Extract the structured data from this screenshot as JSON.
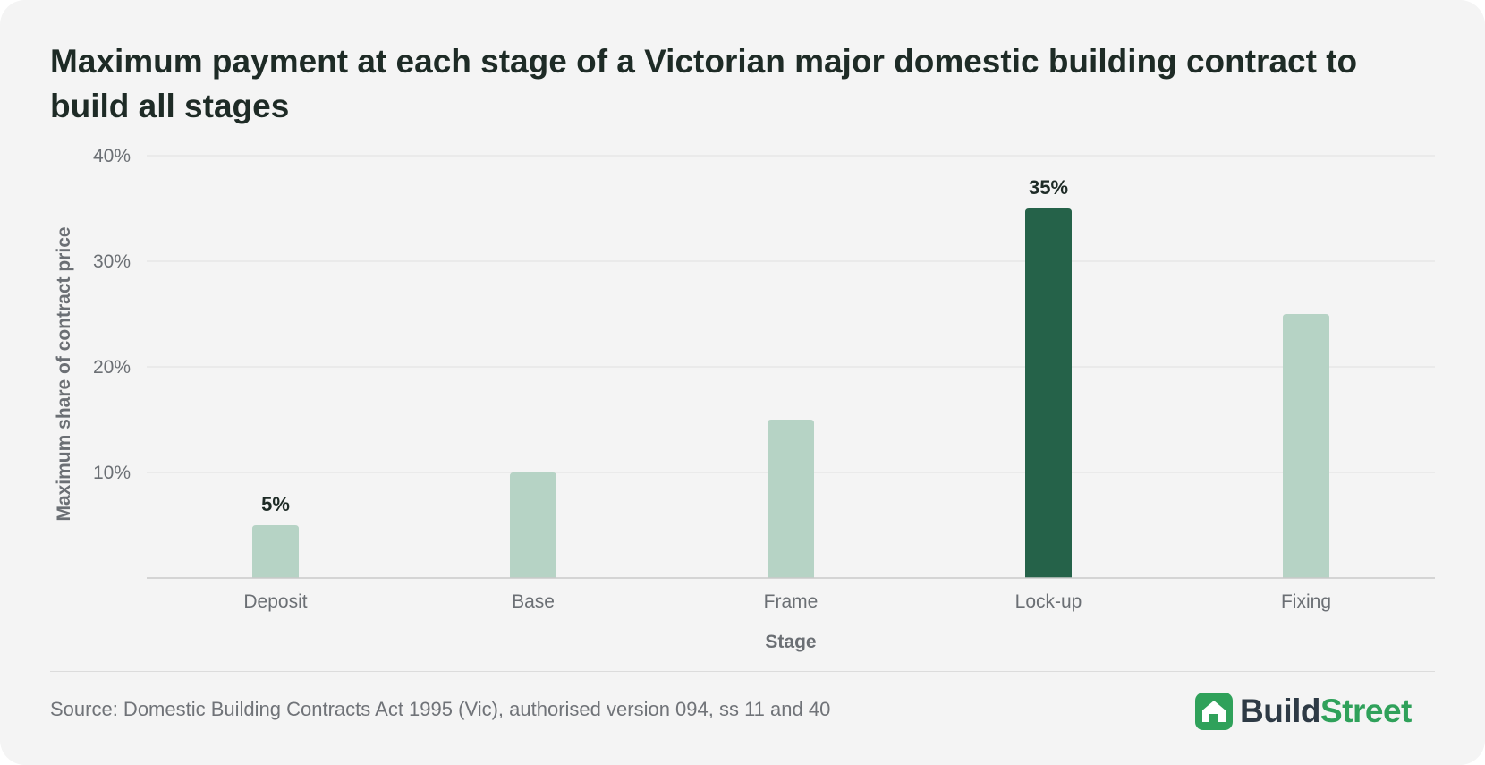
{
  "title": "Maximum payment at each stage of a Victorian major domestic building contract to build all stages",
  "source": "Source: Domestic Building Contracts Act 1995 (Vic), authorised version 094, ss 11 and 40",
  "logo": {
    "part1": "Build",
    "part2": "Street",
    "icon": "house-icon"
  },
  "colors": {
    "bar": "#b6d3c5",
    "highlight": "#256249",
    "logo_green": "#2fa15a",
    "grid": "#e1e1e1"
  },
  "chart_data": {
    "type": "bar",
    "categories": [
      "Deposit",
      "Base",
      "Frame",
      "Lock-up",
      "Fixing"
    ],
    "values": [
      5,
      10,
      15,
      35,
      25
    ],
    "highlight": "Lock-up",
    "data_labels": [
      "5%",
      "",
      "",
      "35%",
      ""
    ],
    "xlabel": "Stage",
    "ylabel": "Maximum share of contract price",
    "ylim": [
      0,
      40
    ],
    "yticks": [
      10,
      20,
      30,
      40
    ],
    "ytick_labels": [
      "10%",
      "20%",
      "30%",
      "40%"
    ],
    "grid": true
  }
}
